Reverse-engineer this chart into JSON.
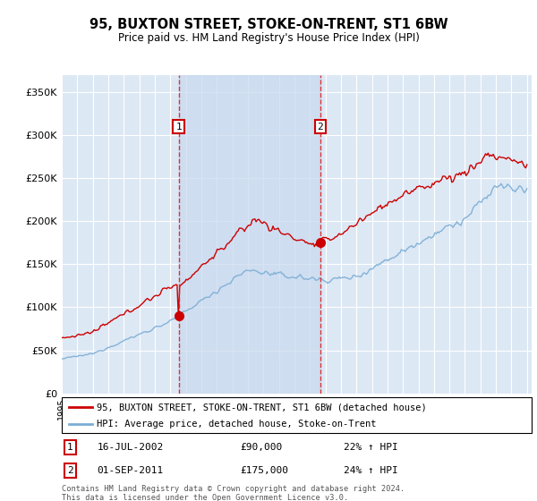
{
  "title": "95, BUXTON STREET, STOKE-ON-TRENT, ST1 6BW",
  "subtitle": "Price paid vs. HM Land Registry's House Price Index (HPI)",
  "ylim": [
    0,
    370000
  ],
  "yticks": [
    0,
    50000,
    100000,
    150000,
    200000,
    250000,
    300000,
    350000
  ],
  "ytick_labels": [
    "£0",
    "£50K",
    "£100K",
    "£150K",
    "£200K",
    "£250K",
    "£300K",
    "£350K"
  ],
  "x_start_year": 1995,
  "x_end_year": 2025,
  "background_color": "#dce9f5",
  "plot_bg": "#dde8f5",
  "grid_color": "#ffffff",
  "shade_color": "#c8d9ef",
  "line_color_red": "#cc0000",
  "line_color_blue": "#7aadd4",
  "marker1_date": "16-JUL-2002",
  "marker1_price": 90000,
  "marker1_hpi": "22% ↑ HPI",
  "marker1_x": 2002.54,
  "marker2_date": "01-SEP-2011",
  "marker2_price": 175000,
  "marker2_hpi": "24% ↑ HPI",
  "marker2_x": 2011.67,
  "legend_label_red": "95, BUXTON STREET, STOKE-ON-TRENT, ST1 6BW (detached house)",
  "legend_label_blue": "HPI: Average price, detached house, Stoke-on-Trent",
  "footer_text": "Contains HM Land Registry data © Crown copyright and database right 2024.\nThis data is licensed under the Open Government Licence v3.0.",
  "annotation1_label": "1",
  "annotation2_label": "2"
}
